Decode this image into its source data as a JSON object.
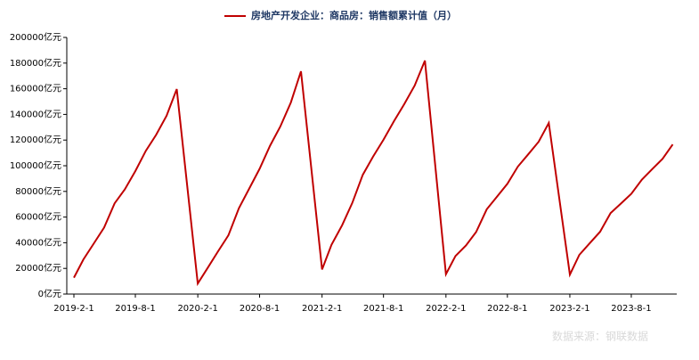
{
  "chart_data": {
    "type": "line",
    "title": "房地产开发企业：商品房：销售额累计值（月）",
    "x": [
      "2019-2-1",
      "2019-3-1",
      "2019-4-1",
      "2019-5-1",
      "2019-6-1",
      "2019-7-1",
      "2019-8-1",
      "2019-9-1",
      "2019-10-1",
      "2019-11-1",
      "2019-12-1",
      "2020-2-1",
      "2020-3-1",
      "2020-4-1",
      "2020-5-1",
      "2020-6-1",
      "2020-7-1",
      "2020-8-1",
      "2020-9-1",
      "2020-10-1",
      "2020-11-1",
      "2020-12-1",
      "2021-2-1",
      "2021-3-1",
      "2021-4-1",
      "2021-5-1",
      "2021-6-1",
      "2021-7-1",
      "2021-8-1",
      "2021-9-1",
      "2021-10-1",
      "2021-11-1",
      "2021-12-1",
      "2022-2-1",
      "2022-3-1",
      "2022-4-1",
      "2022-5-1",
      "2022-6-1",
      "2022-7-1",
      "2022-8-1",
      "2022-9-1",
      "2022-10-1",
      "2022-11-1",
      "2022-12-1",
      "2023-2-1",
      "2023-3-1",
      "2023-4-1",
      "2023-5-1",
      "2023-6-1",
      "2023-7-1",
      "2023-8-1",
      "2023-9-1",
      "2023-10-1",
      "2023-11-1",
      "2023-12-1"
    ],
    "series": [
      {
        "name": "房地产开发企业：商品房：销售额累计值（月）",
        "color": "#c00000",
        "values": [
          12803,
          27039,
          39615,
          51773,
          70698,
          81576,
          95845,
          111690,
          124014,
          139006,
          159725,
          8203,
          20365,
          33426,
          45749,
          66895,
          81955,
          97580,
          115647,
          130550,
          149252,
          173613,
          19151,
          38378,
          53640,
          70974,
          92931,
          106998,
          120277,
          134795,
          147914,
          162494,
          181930,
          15459,
          29655,
          37826,
          48337,
          66072,
          75763,
          85870,
          99380,
          108832,
          118648,
          133308,
          15133,
          30545,
          39750,
          48527,
          63092,
          70450,
          78158,
          89070,
          97161,
          105318,
          116622
        ]
      }
    ],
    "ylim": [
      0,
      200000
    ],
    "yticks": [
      {
        "value": 0,
        "label": "0亿元"
      },
      {
        "value": 20000,
        "label": "20000亿元"
      },
      {
        "value": 40000,
        "label": "40000亿元"
      },
      {
        "value": 60000,
        "label": "60000亿元"
      },
      {
        "value": 80000,
        "label": "80000亿元"
      },
      {
        "value": 100000,
        "label": "100000亿元"
      },
      {
        "value": 120000,
        "label": "120000亿元"
      },
      {
        "value": 140000,
        "label": "140000亿元"
      },
      {
        "value": 160000,
        "label": "160000亿元"
      },
      {
        "value": 180000,
        "label": "180000亿元"
      },
      {
        "value": 200000,
        "label": "200000亿元"
      }
    ],
    "xticks": [
      "2019-2-1",
      "2019-8-1",
      "2020-2-1",
      "2020-8-1",
      "2021-2-1",
      "2021-8-1",
      "2022-2-1",
      "2022-8-1",
      "2023-2-1",
      "2023-8-1"
    ],
    "source": "数据来源：钢联数据"
  }
}
